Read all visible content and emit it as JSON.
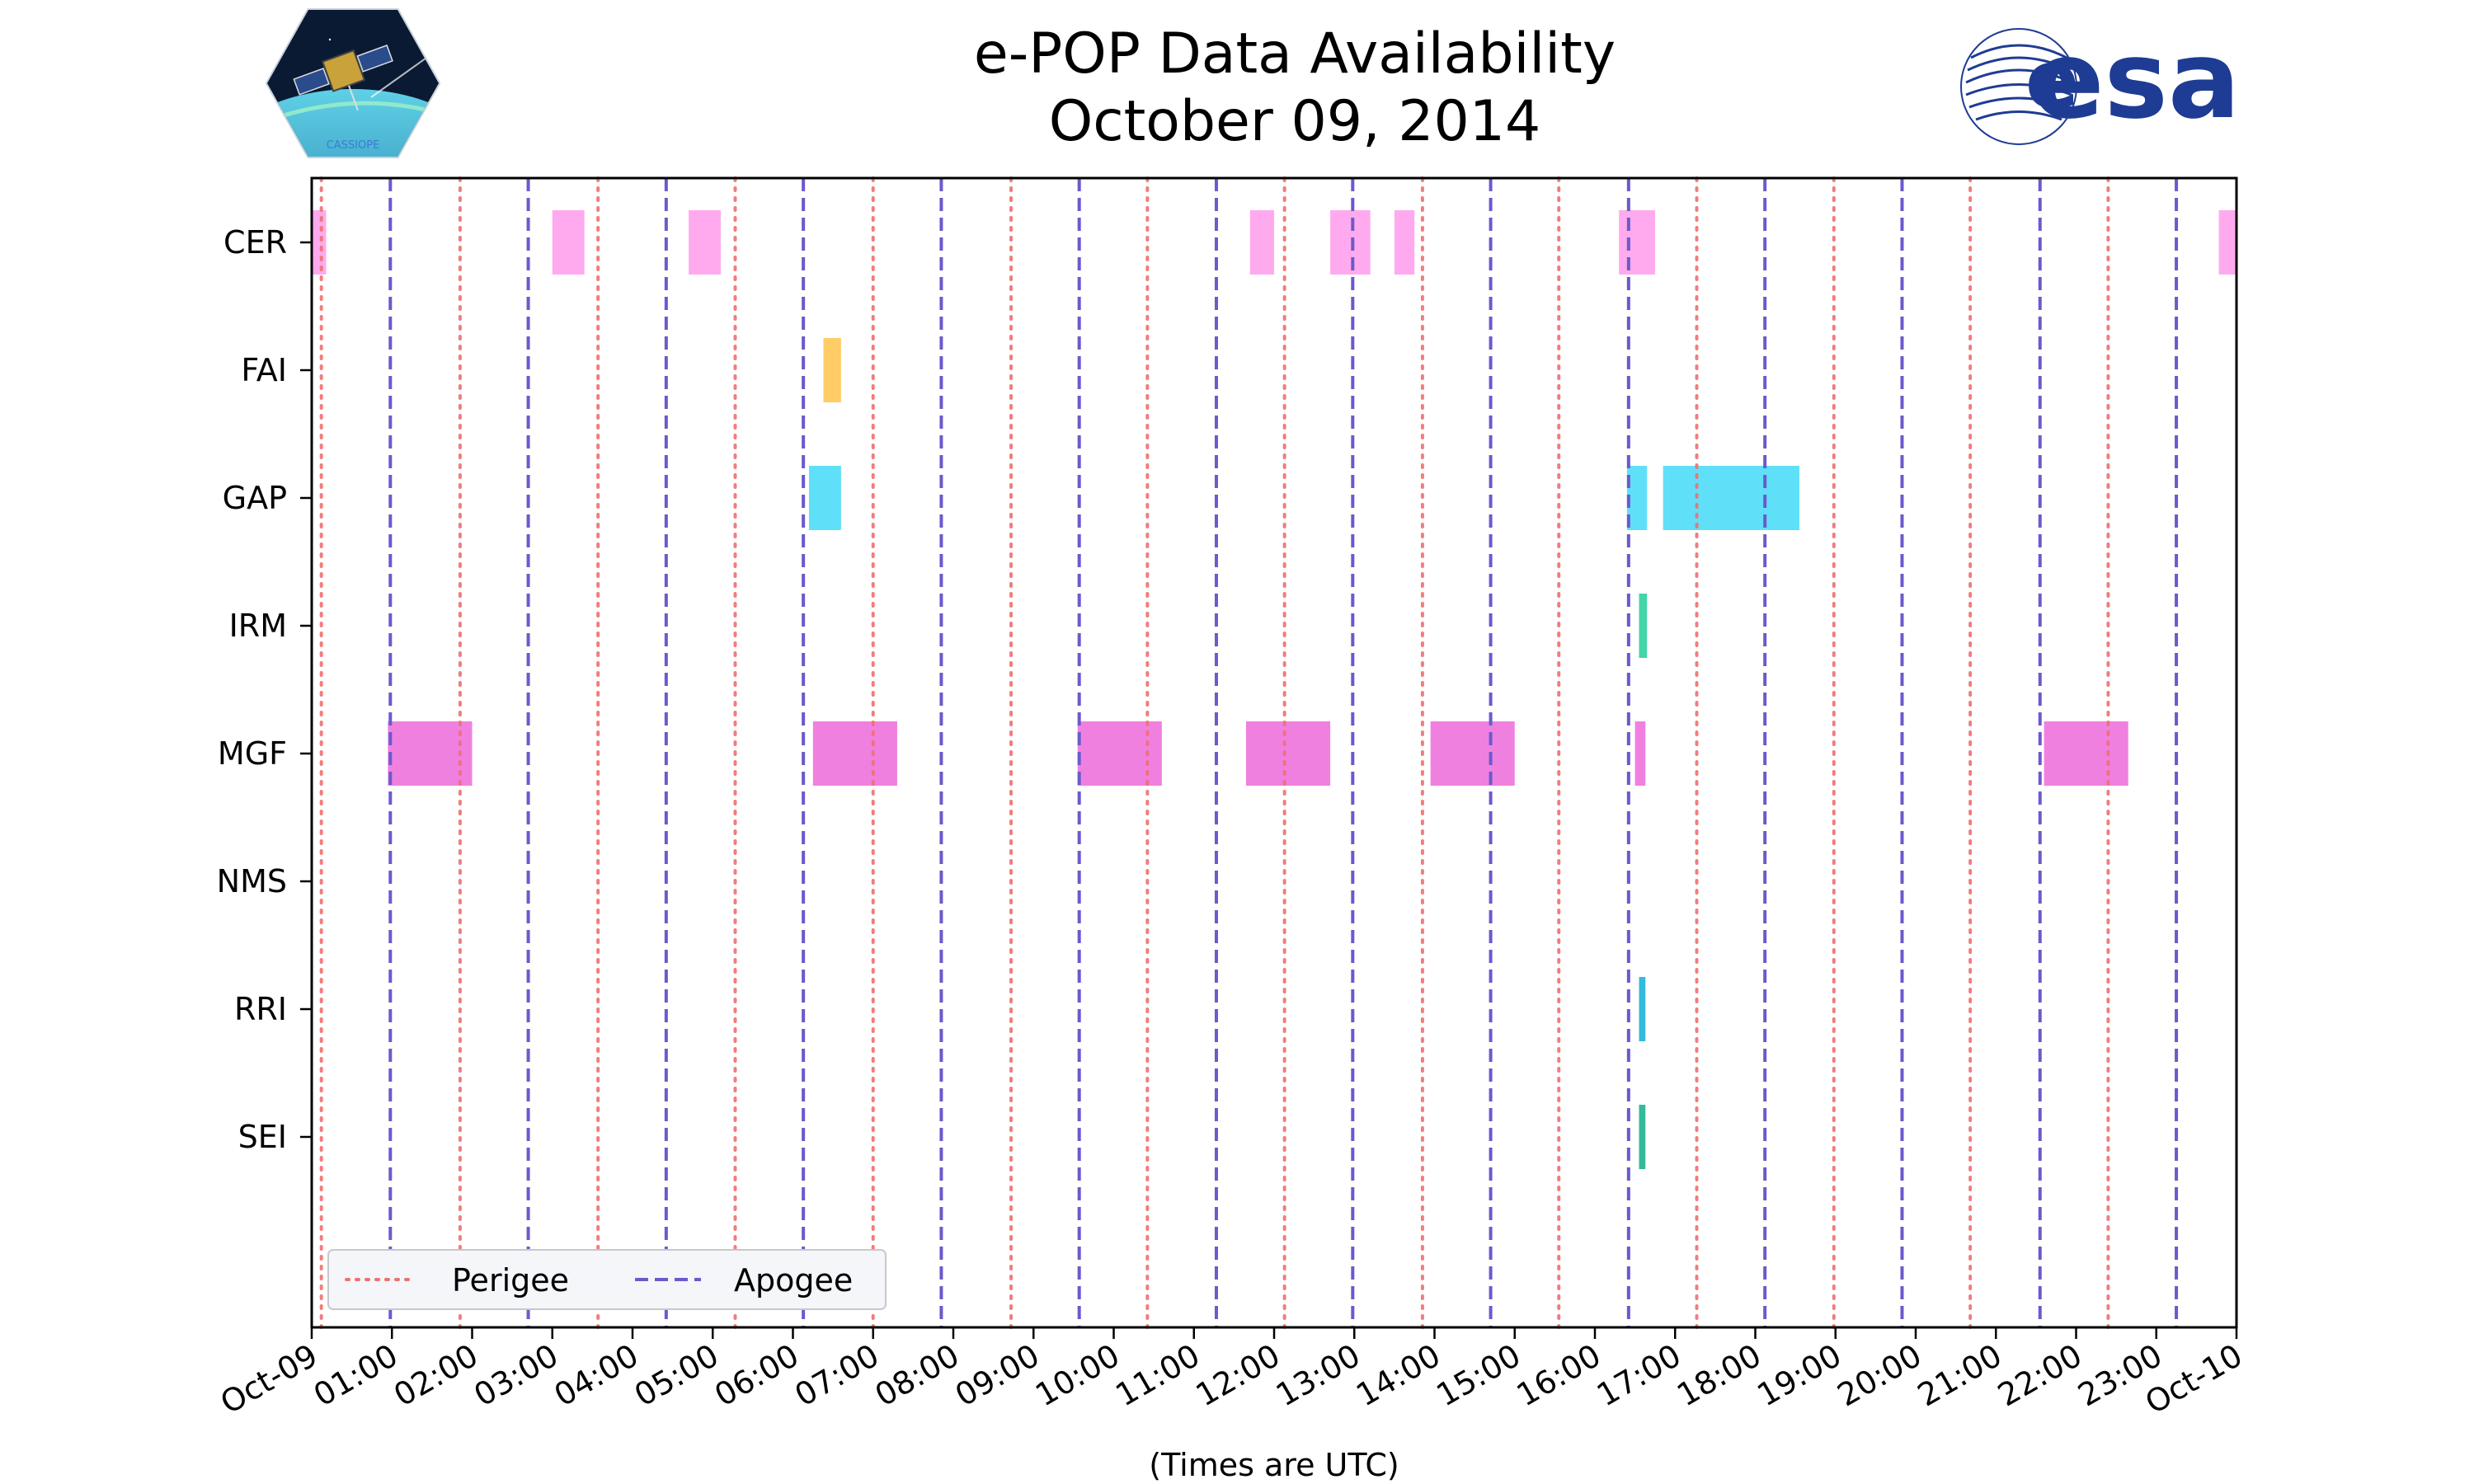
{
  "header": {
    "title_line1": "e-POP Data Availability",
    "title_line2": "October 09, 2014",
    "left_logo_text": "CASSIOPE",
    "right_logo_text": "esa"
  },
  "chart_data": {
    "type": "timeline",
    "title": "e-POP Data Availability October 09, 2014",
    "xlabel": "(Times are UTC)",
    "xlim_hours": [
      0,
      24
    ],
    "x_tick_labels": [
      "Oct-09",
      "01:00",
      "02:00",
      "03:00",
      "04:00",
      "05:00",
      "06:00",
      "07:00",
      "08:00",
      "09:00",
      "10:00",
      "11:00",
      "12:00",
      "13:00",
      "14:00",
      "15:00",
      "16:00",
      "17:00",
      "18:00",
      "19:00",
      "20:00",
      "21:00",
      "22:00",
      "23:00",
      "Oct-10"
    ],
    "instruments": [
      "CER",
      "FAI",
      "GAP",
      "IRM",
      "MGF",
      "NMS",
      "RRI",
      "SEI"
    ],
    "colors": {
      "CER": "#ffaaee",
      "FAI": "#ffcc66",
      "GAP": "#60e0f8",
      "IRM": "#44d4aa",
      "MGF": "#f080e0",
      "NMS": "#888888",
      "RRI": "#33bbdd",
      "SEI": "#33bb99",
      "perigee": "#f07070",
      "apogee": "#6a5acd"
    },
    "availability": {
      "CER": [
        [
          0.0,
          0.18
        ],
        [
          3.0,
          3.4
        ],
        [
          4.7,
          5.1
        ],
        [
          11.7,
          12.0
        ],
        [
          12.7,
          13.2
        ],
        [
          13.5,
          13.75
        ],
        [
          16.3,
          16.75
        ],
        [
          23.78,
          24.0
        ]
      ],
      "FAI": [
        [
          6.38,
          6.6
        ]
      ],
      "GAP": [
        [
          6.2,
          6.6
        ],
        [
          16.4,
          16.65
        ],
        [
          16.85,
          18.55
        ]
      ],
      "IRM": [
        [
          16.55,
          16.65
        ]
      ],
      "MGF": [
        [
          0.95,
          2.0
        ],
        [
          6.25,
          7.3
        ],
        [
          9.55,
          10.6
        ],
        [
          11.65,
          12.7
        ],
        [
          13.95,
          15.0
        ],
        [
          16.5,
          16.63
        ],
        [
          21.6,
          22.65
        ]
      ],
      "NMS": [],
      "RRI": [
        [
          16.55,
          16.63
        ]
      ],
      "SEI": [
        [
          16.55,
          16.63
        ]
      ]
    },
    "perigee_hours": [
      0.12,
      1.85,
      3.57,
      5.28,
      7.0,
      8.72,
      10.42,
      12.13,
      13.85,
      15.55,
      17.27,
      18.98,
      20.68,
      22.4
    ],
    "apogee_hours": [
      0.98,
      2.7,
      4.42,
      6.13,
      7.85,
      9.57,
      11.28,
      12.98,
      14.7,
      16.42,
      18.12,
      19.83,
      21.55,
      23.25
    ],
    "legend": {
      "perigee_label": "Perigee",
      "apogee_label": "Apogee",
      "position": "lower-left"
    }
  }
}
